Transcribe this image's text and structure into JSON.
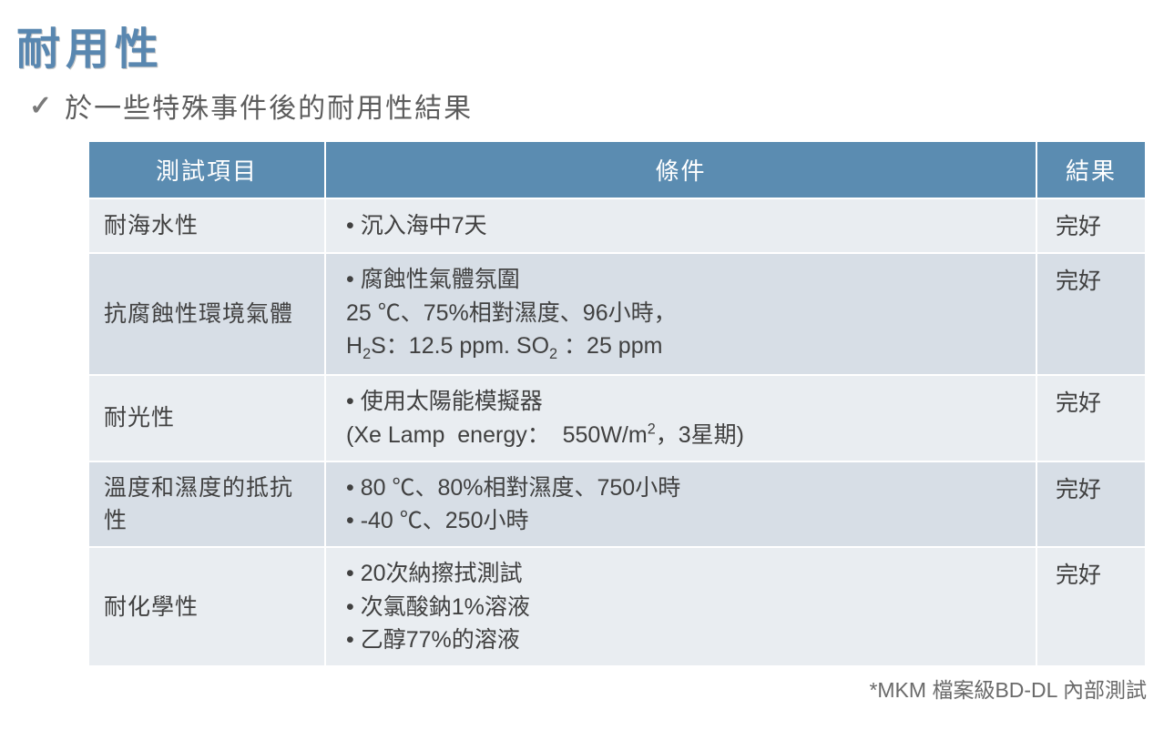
{
  "title": "耐用性",
  "subtitle": "於一些特殊事件後的耐用性結果",
  "table": {
    "header_bg": "#5b8cb1",
    "header_fg": "#ffffff",
    "row_odd_bg": "#e9edf1",
    "row_even_bg": "#d7dee6",
    "columns": {
      "item": "測試項目",
      "cond": "條件",
      "result": "結果"
    },
    "rows": [
      {
        "item": "耐海水性",
        "cond_html": "• 沉入海中7天",
        "result": "完好"
      },
      {
        "item": "抗腐蝕性環境氣體",
        "cond_html": "• 腐蝕性氣體氛圍<br>25 ℃、75%相對濕度、96小時，<br>H<sub>2</sub>S：12.5 ppm. SO<sub>2</sub> ：25 ppm",
        "result": "完好"
      },
      {
        "item": "耐光性",
        "cond_html": "• 使用太陽能模擬器<br>(Xe Lamp&nbsp;&nbsp;energy：&nbsp;&nbsp;550W/m<sup>2</sup>，3星期)",
        "result": "完好"
      },
      {
        "item": "溫度和濕度的抵抗性",
        "cond_html": "• 80 ℃、80%相對濕度、750小時<br>• -40 ℃、250小時",
        "result": "完好"
      },
      {
        "item": "耐化學性",
        "cond_html": "• 20次納擦拭測試<br>• 次氯酸鈉1%溶液<br>• 乙醇77%的溶液",
        "result": "完好"
      }
    ]
  },
  "footnote": "*MKM 檔案級BD-DL 內部測試"
}
